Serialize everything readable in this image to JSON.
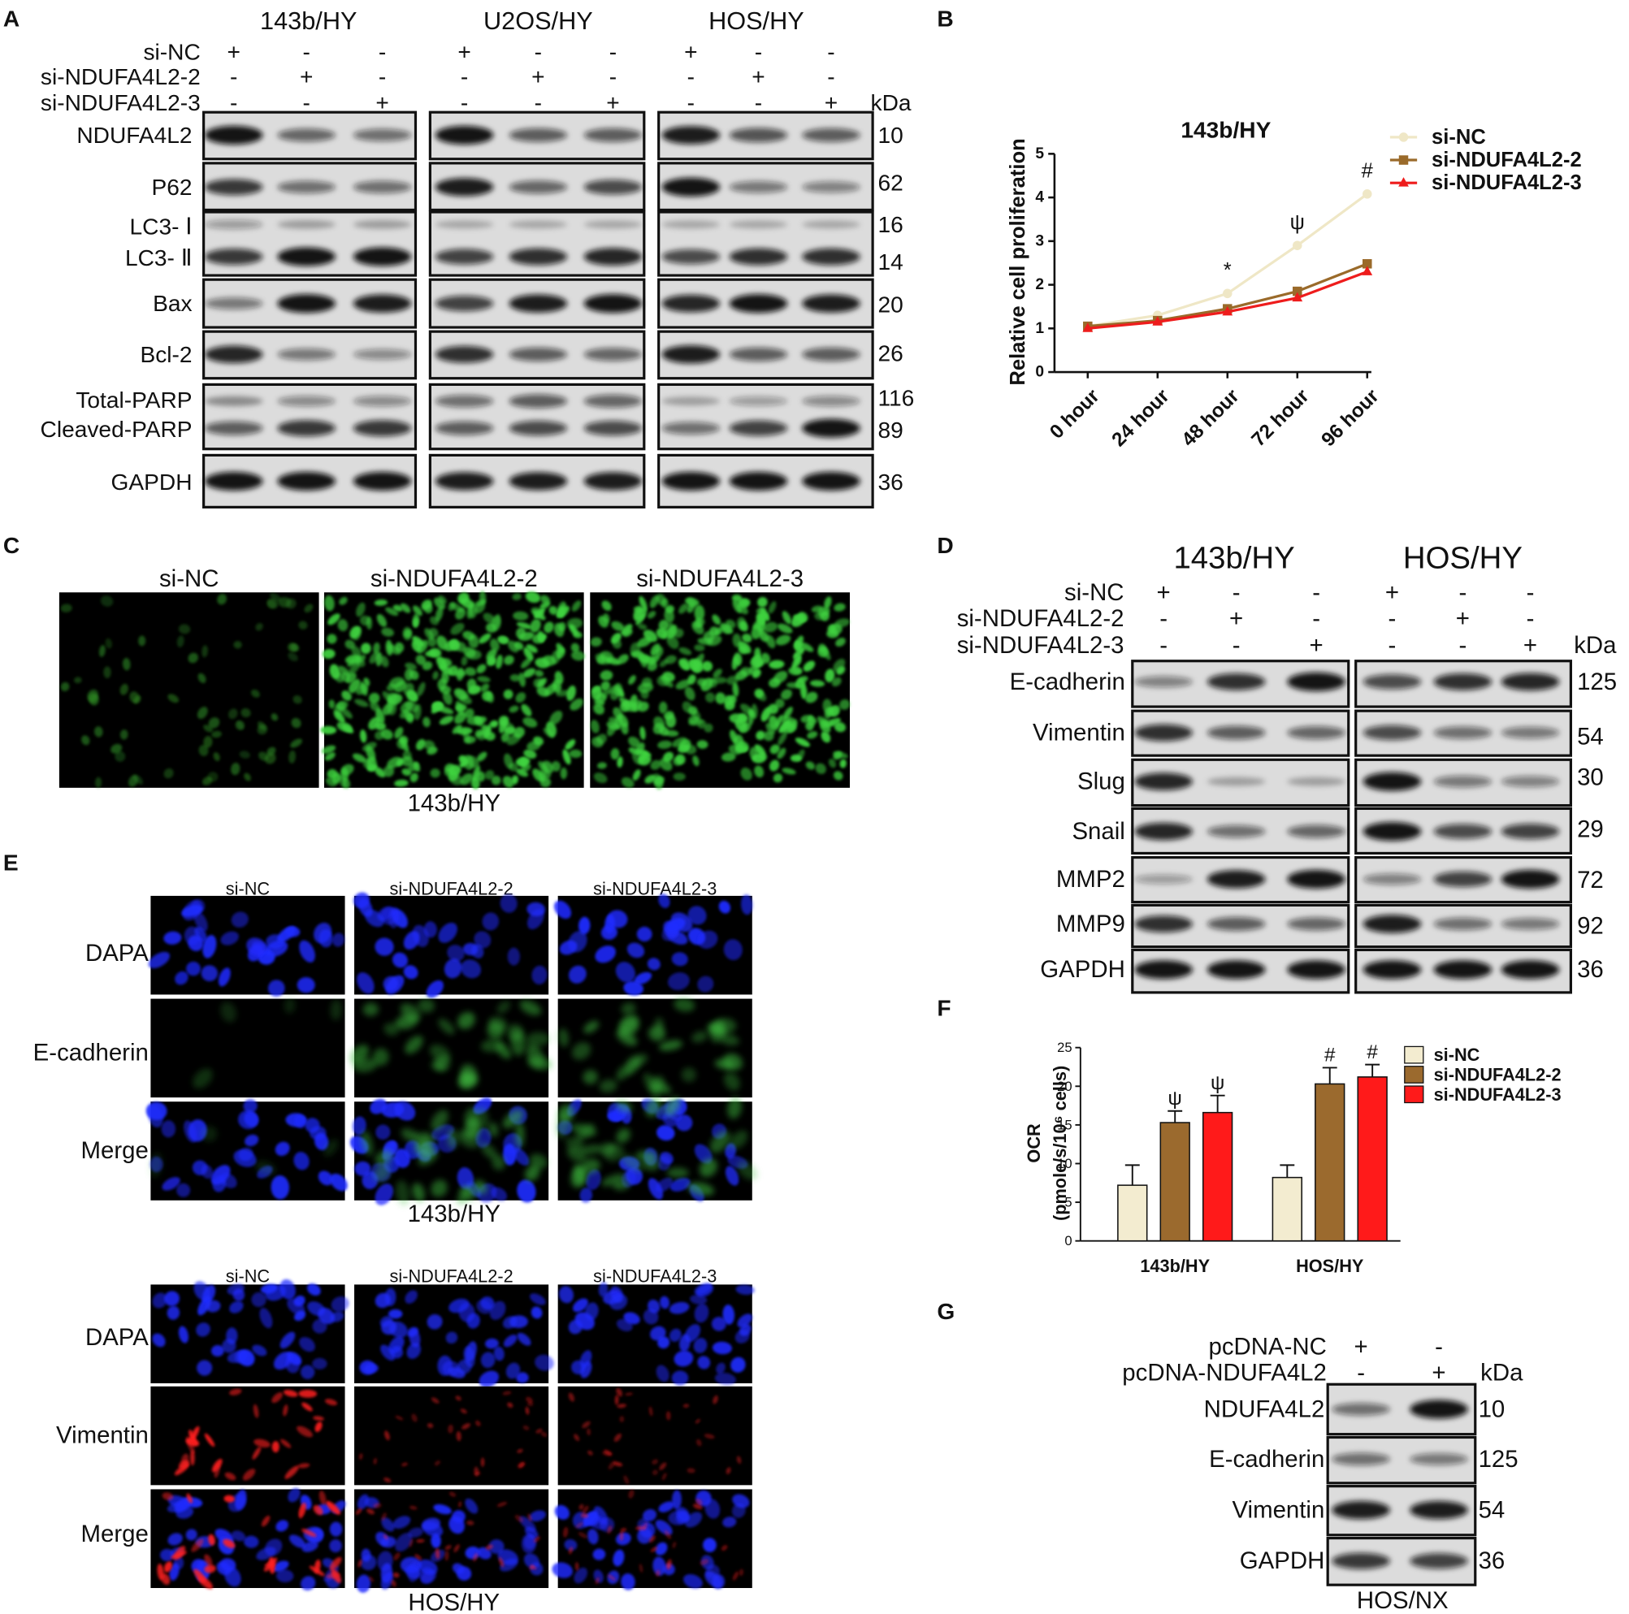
{
  "panel_labels": [
    "A",
    "B",
    "C",
    "D",
    "E",
    "F",
    "G"
  ],
  "panel_A": {
    "cell_lines": [
      "143b/HY",
      "U2OS/HY",
      "HOS/HY"
    ],
    "conditions": [
      {
        "name": "si-NC",
        "signs": [
          "+",
          "-",
          "-",
          "+",
          "-",
          "-",
          "+",
          "-",
          "-"
        ]
      },
      {
        "name": "si-NDUFA4L2-2",
        "signs": [
          "-",
          "+",
          "-",
          "-",
          "+",
          "-",
          "-",
          "+",
          "-"
        ]
      },
      {
        "name": "si-NDUFA4L2-3",
        "signs": [
          "-",
          "-",
          "+",
          "-",
          "-",
          "+",
          "-",
          "-",
          "+"
        ]
      }
    ],
    "unit": "kDa",
    "blots": [
      [
        {
          "name": "NDUFA4L2",
          "kda": 10
        }
      ],
      [
        {
          "name": "P62",
          "kda": 62
        }
      ],
      [
        {
          "name": "LC3- Ⅰ",
          "kda": 16
        },
        {
          "name": "LC3- Ⅱ",
          "kda": 14
        }
      ],
      [
        {
          "name": "Bax",
          "kda": 20
        }
      ],
      [
        {
          "name": "Bcl-2",
          "kda": 26
        }
      ],
      [
        {
          "name": "Total-PARP",
          "kda": 116
        },
        {
          "name": "Cleaved-PARP",
          "kda": 89
        }
      ],
      [
        {
          "name": "GAPDH",
          "kda": 36
        }
      ]
    ]
  },
  "panel_C": {
    "columns": [
      "si-NC",
      "si-NDUFA4L2-2",
      "si-NDUFA4L2-3"
    ],
    "caption": "143b/HY"
  },
  "panel_D": {
    "cell_lines": [
      "143b/HY",
      "HOS/HY"
    ],
    "conditions": [
      {
        "name": "si-NC",
        "signs": [
          "+",
          "-",
          "-",
          "+",
          "-",
          "-"
        ]
      },
      {
        "name": "si-NDUFA4L2-2",
        "signs": [
          "-",
          "+",
          "-",
          "-",
          "+",
          "-"
        ]
      },
      {
        "name": "si-NDUFA4L2-3",
        "signs": [
          "-",
          "-",
          "+",
          "-",
          "-",
          "+"
        ]
      }
    ],
    "unit": "kDa",
    "blots": [
      [
        {
          "name": "E-cadherin",
          "kda": 125
        }
      ],
      [
        {
          "name": "Vimentin",
          "kda": 54
        }
      ],
      [
        {
          "name": "Slug",
          "kda": 30
        }
      ],
      [
        {
          "name": "Snail",
          "kda": 29
        }
      ],
      [
        {
          "name": "MMP2",
          "kda": 72
        }
      ],
      [
        {
          "name": "MMP9",
          "kda": 92
        }
      ],
      [
        {
          "name": "GAPDH",
          "kda": 36
        }
      ]
    ]
  },
  "panel_E": [
    {
      "columns": [
        "si-NC",
        "si-NDUFA4L2-2",
        "si-NDUFA4L2-3"
      ],
      "rows": [
        "DAPA",
        "E-cadherin",
        "Merge"
      ],
      "caption": "143b/HY"
    },
    {
      "columns": [
        "si-NC",
        "si-NDUFA4L2-2",
        "si-NDUFA4L2-3"
      ],
      "rows": [
        "DAPA",
        "Vimentin",
        "Merge"
      ],
      "caption": "HOS/HY"
    }
  ],
  "panel_G": {
    "conditions": [
      {
        "name": "pcDNA-NC",
        "signs": [
          "+",
          "-"
        ]
      },
      {
        "name": "pcDNA-NDUFA4L2",
        "signs": [
          "-",
          "+"
        ]
      }
    ],
    "unit": "kDa",
    "blots": [
      [
        {
          "name": "NDUFA4L2",
          "kda": 10
        }
      ],
      [
        {
          "name": "E-cadherin",
          "kda": 125
        }
      ],
      [
        {
          "name": "Vimentin",
          "kda": 54
        }
      ],
      [
        {
          "name": "GAPDH",
          "kda": 36
        }
      ]
    ],
    "caption": "HOS/NX"
  },
  "chart_data": [
    {
      "type": "line",
      "title": "143b/HY",
      "y_label": "Relative cell proliferation",
      "categories": [
        "0 hour",
        "24 hour",
        "48 hour",
        "72 hour",
        "96 hour"
      ],
      "series": [
        {
          "name": "si-NC",
          "color": "#efe7c6",
          "values": [
            1.05,
            1.3,
            1.8,
            2.9,
            4.08
          ]
        },
        {
          "name": "si-NDUFA4L2-2",
          "color": "#9a6a2a",
          "values": [
            1.05,
            1.18,
            1.45,
            1.85,
            2.48
          ]
        },
        {
          "name": "si-NDUFA4L2-3",
          "color": "#ee1c1c",
          "values": [
            1.0,
            1.15,
            1.38,
            1.7,
            2.3
          ]
        }
      ],
      "ylim": [
        0,
        5
      ],
      "yticks": [
        0,
        1,
        2,
        3,
        4,
        5
      ],
      "annotations": [
        {
          "text": "*",
          "category": "48 hour"
        },
        {
          "text": "ψ",
          "category": "72 hour"
        },
        {
          "text": "#",
          "category": "96 hour"
        }
      ]
    },
    {
      "type": "bar",
      "y_label": [
        "OCR",
        "(pmole/s/10⁶ cells)"
      ],
      "categories": [
        "143b/HY",
        "HOS/HY"
      ],
      "series": [
        {
          "name": "si-NC",
          "color": "#f3ecd0",
          "values": [
            7.2,
            8.2
          ],
          "errors": [
            2.6,
            1.6
          ]
        },
        {
          "name": "si-NDUFA4L2-2",
          "color": "#9b6a2e",
          "values": [
            15.3,
            20.3
          ],
          "errors": [
            1.5,
            2.1
          ]
        },
        {
          "name": "si-NDUFA4L2-3",
          "color": "#ff1a1a",
          "values": [
            16.6,
            21.2
          ],
          "errors": [
            2.2,
            1.6
          ]
        }
      ],
      "ylim": [
        0,
        25
      ],
      "yticks": [
        0,
        5,
        10,
        15,
        20,
        25
      ],
      "annotations": [
        {
          "text": "ψ",
          "category": "143b/HY",
          "series": "si-NDUFA4L2-2"
        },
        {
          "text": "ψ",
          "category": "143b/HY",
          "series": "si-NDUFA4L2-3"
        },
        {
          "text": "#",
          "category": "HOS/HY",
          "series": "si-NDUFA4L2-2"
        },
        {
          "text": "#",
          "category": "HOS/HY",
          "series": "si-NDUFA4L2-3"
        }
      ]
    }
  ]
}
